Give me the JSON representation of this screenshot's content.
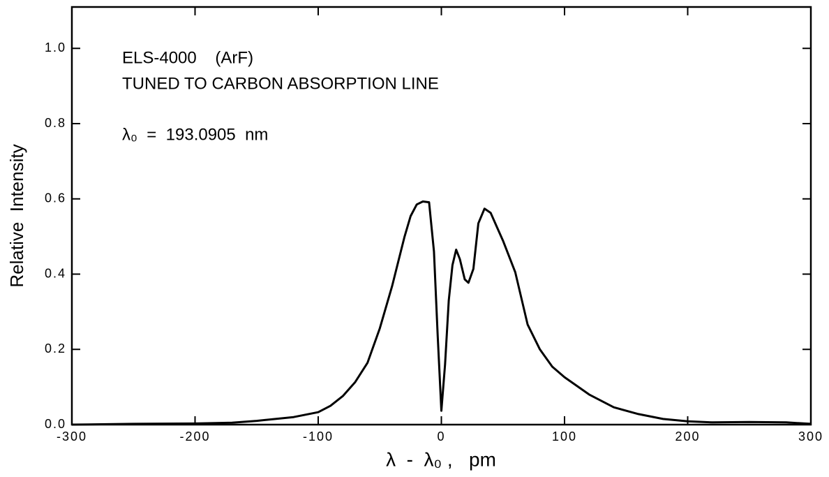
{
  "chart_data": {
    "type": "line",
    "annotations": [
      "ELS-4000    (ArF)",
      "TUNED TO CARBON ABSORPTION LINE",
      "λ₀  =  193.0905  nm"
    ],
    "xlabel": "λ  -  λ₀ ,   pm",
    "ylabel": "Relative  Intensity",
    "color": "#000000",
    "x": [
      -300,
      -250,
      -200,
      -170,
      -150,
      -120,
      -100,
      -90,
      -80,
      -70,
      -60,
      -50,
      -40,
      -30,
      -25,
      -20,
      -15,
      -10,
      -6,
      -3,
      0,
      3,
      6,
      9,
      12,
      15,
      19,
      22,
      26,
      30,
      35,
      40,
      45,
      50,
      60,
      70,
      80,
      90,
      100,
      120,
      140,
      160,
      180,
      200,
      220,
      250,
      280,
      300
    ],
    "values": [
      0.0,
      0.002,
      0.003,
      0.005,
      0.01,
      0.02,
      0.033,
      0.05,
      0.076,
      0.113,
      0.164,
      0.256,
      0.368,
      0.498,
      0.554,
      0.585,
      0.593,
      0.591,
      0.46,
      0.238,
      0.037,
      0.16,
      0.33,
      0.424,
      0.465,
      0.44,
      0.386,
      0.377,
      0.414,
      0.535,
      0.574,
      0.563,
      0.526,
      0.489,
      0.405,
      0.266,
      0.2,
      0.154,
      0.126,
      0.08,
      0.046,
      0.028,
      0.015,
      0.009,
      0.006,
      0.007,
      0.006,
      0.002
    ],
    "xlim": [
      -300,
      300
    ],
    "ylim": [
      0,
      1.11
    ],
    "xticks": [
      -300,
      -200,
      -100,
      0,
      100,
      200,
      300
    ],
    "yticks": [
      {
        "value": 0,
        "label": "0.0"
      },
      {
        "value": 0.2,
        "label": "0.2"
      },
      {
        "value": 0.4,
        "label": "0.4"
      },
      {
        "value": 0.6,
        "label": "0.6"
      },
      {
        "value": 0.8,
        "label": "0.8"
      },
      {
        "value": 1.0,
        "label": "1.0"
      }
    ]
  }
}
